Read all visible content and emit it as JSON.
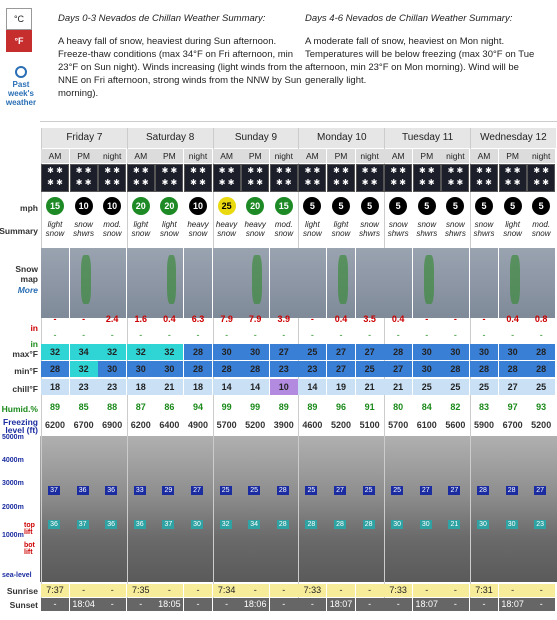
{
  "units": {
    "c": "°C",
    "f": "°F"
  },
  "past_link": "Past week's weather",
  "summary": [
    {
      "title": "Days 0-3 Nevados de Chillan Weather Summary:",
      "text": "A heavy fall of snow, heaviest during Sun afternoon. Freeze-thaw conditions (max 34°F on Fri afternoon, min 23°F on Sun night). Winds increasing (light winds from the NNE on Fri afternoon, strong winds from the NNW by Sun morning)."
    },
    {
      "title": "Days 4-6 Nevados de Chillan Weather Summary:",
      "text": "A moderate fall of snow, heaviest on Mon night. Temperatures will be below freezing (max 30°F on Tue afternoon, min 23°F on Mon morning). Wind will be generally light."
    }
  ],
  "row_labels": {
    "wind": "mph",
    "summary": "Summary",
    "map": "Snow map",
    "map_more": "More",
    "snow": "in",
    "rain": "in",
    "max": "max°F",
    "min": "min°F",
    "chill": "chill°F",
    "humid": "Humid.%",
    "freezing": "Freezing level (ft)",
    "sunrise": "Sunrise",
    "sunset": "Sunset"
  },
  "days": [
    "Friday 7",
    "Saturday 8",
    "Sunday 9",
    "Monday 10",
    "Tuesday 11",
    "Wednesday 12"
  ],
  "periods": [
    "AM",
    "PM",
    "night",
    "AM",
    "PM",
    "night",
    "AM",
    "PM",
    "night",
    "AM",
    "PM",
    "night",
    "AM",
    "PM",
    "night",
    "AM",
    "PM",
    "night"
  ],
  "wind": [
    "15",
    "10",
    "10",
    "20",
    "20",
    "10",
    "25",
    "20",
    "15",
    "5",
    "5",
    "5",
    "5",
    "5",
    "5",
    "5",
    "5",
    "5"
  ],
  "wind_colors": [
    "g",
    "k",
    "k",
    "g",
    "g",
    "k",
    "y",
    "g",
    "g",
    "k",
    "k",
    "k",
    "k",
    "k",
    "k",
    "k",
    "k",
    "k"
  ],
  "summary_text": [
    "light snow",
    "snow shwrs",
    "mod. snow",
    "light snow",
    "light snow",
    "heavy snow",
    "heavy snow",
    "heavy snow",
    "mod. snow",
    "light snow",
    "light snow",
    "snow shwrs",
    "snow shwrs",
    "snow shwrs",
    "snow shwrs",
    "snow shwrs",
    "light snow",
    "mod. snow"
  ],
  "snow": [
    "-",
    "-",
    "2.4",
    "1.6",
    "0.4",
    "6.3",
    "7.9",
    "7.9",
    "3.9",
    "-",
    "0.4",
    "3.5",
    "0.4",
    "-",
    "-",
    "-",
    "0.4",
    "0.8"
  ],
  "rain": [
    "-",
    "-",
    "-",
    "-",
    "-",
    "-",
    "-",
    "-",
    "-",
    "-",
    "-",
    "-",
    "-",
    "-",
    "-",
    "-",
    "-",
    "-"
  ],
  "max": [
    "32",
    "34",
    "32",
    "32",
    "32",
    "28",
    "30",
    "30",
    "27",
    "25",
    "27",
    "27",
    "28",
    "30",
    "30",
    "30",
    "30",
    "28"
  ],
  "min": [
    "28",
    "32",
    "30",
    "30",
    "30",
    "28",
    "28",
    "28",
    "23",
    "23",
    "27",
    "25",
    "27",
    "30",
    "28",
    "28",
    "28",
    "28"
  ],
  "chill": [
    "18",
    "23",
    "23",
    "18",
    "21",
    "18",
    "14",
    "14",
    "10",
    "14",
    "19",
    "21",
    "21",
    "25",
    "25",
    "25",
    "27",
    "25"
  ],
  "humid": [
    "89",
    "85",
    "88",
    "87",
    "86",
    "94",
    "99",
    "99",
    "89",
    "89",
    "96",
    "91",
    "80",
    "84",
    "82",
    "83",
    "97",
    "93"
  ],
  "freezing": [
    "6200",
    "6700",
    "6900",
    "6200",
    "6400",
    "4900",
    "5700",
    "5200",
    "3900",
    "4600",
    "5200",
    "5100",
    "5700",
    "6100",
    "5600",
    "5900",
    "6700",
    "5200"
  ],
  "sunrise": [
    "7:37",
    "-",
    "-",
    "7:35",
    "-",
    "-",
    "7:34",
    "-",
    "-",
    "7:33",
    "-",
    "-",
    "7:33",
    "-",
    "-",
    "7:31",
    "-",
    "-"
  ],
  "sunset": [
    "-",
    "18:04",
    "-",
    "-",
    "18:05",
    "-",
    "-",
    "18:06",
    "-",
    "-",
    "18:07",
    "-",
    "-",
    "18:07",
    "-",
    "-",
    "18:07",
    "-"
  ],
  "altitude_labels": [
    "5000m",
    "4000m",
    "3000m",
    "2000m",
    "1000m",
    "sea-level"
  ],
  "lift_labels": [
    "top lift",
    "bot lift"
  ],
  "chart_markers_2000": [
    "37",
    "36",
    "36",
    "33",
    "29",
    "27",
    "25",
    "25",
    "28",
    "25",
    "27",
    "25",
    "25",
    "27",
    "27",
    "28",
    "28",
    "27"
  ],
  "chart_markers_1000": [
    "36",
    "37",
    "36",
    "36",
    "37",
    "30",
    "32",
    "34",
    "28",
    "28",
    "28",
    "28",
    "30",
    "30",
    "21",
    "30",
    "30",
    "23"
  ],
  "colors": {
    "max_cold": "#3a7fd6",
    "max_warm": "#2fd4d4",
    "chill_light": "#c9e0f5",
    "chill_purple": "#b28be0"
  }
}
